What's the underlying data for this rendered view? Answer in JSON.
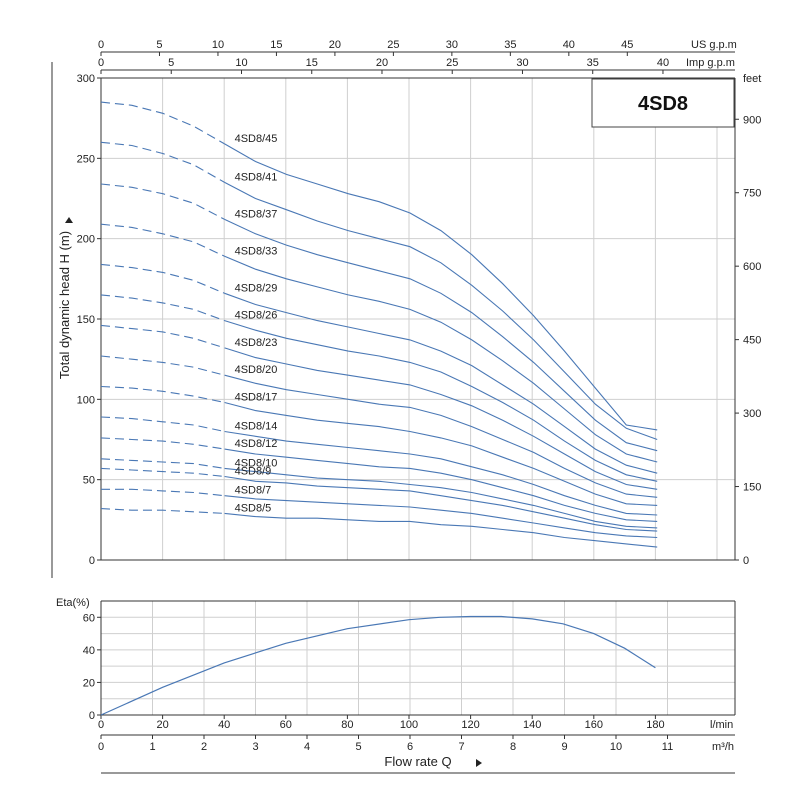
{
  "chart_data": [
    {
      "type": "line",
      "title": "4SD8",
      "ylabel": "Total dynamic head H (m)",
      "y2label": "feet",
      "ylim": [
        0,
        300
      ],
      "yticks": [
        0,
        50,
        100,
        150,
        200,
        250,
        300
      ],
      "y2ticks": [
        0,
        150,
        300,
        450,
        600,
        750,
        900
      ],
      "xlim": [
        0,
        10.8
      ],
      "top_axis_us": {
        "unit": "US g.p.m",
        "ticks": [
          0,
          5,
          10,
          15,
          20,
          25,
          30,
          35,
          40,
          45
        ]
      },
      "top_axis_imp": {
        "unit": "Imp g.p.m",
        "ticks": [
          0,
          5,
          10,
          15,
          20,
          25,
          30,
          35,
          40
        ]
      },
      "grid": true,
      "x": [
        0,
        0.6,
        1.2,
        1.8,
        2.4,
        3.0,
        3.6,
        4.2,
        4.8,
        5.4,
        6.0,
        6.6,
        7.2,
        7.8,
        8.4,
        9.0,
        9.6,
        10.2,
        10.8
      ],
      "dashed_until_x": 2.4,
      "series": [
        {
          "name": "4SD8/45",
          "values": [
            285,
            283,
            278,
            270,
            259,
            248,
            240,
            234,
            228,
            223,
            216,
            205,
            190,
            172,
            152,
            130,
            107,
            84,
            81
          ]
        },
        {
          "name": "4SD8/41",
          "values": [
            260,
            258,
            253,
            246,
            235,
            225,
            218,
            211,
            205,
            200,
            195,
            185,
            171,
            155,
            137,
            117,
            97,
            82,
            75
          ]
        },
        {
          "name": "4SD8/37",
          "values": [
            234,
            232,
            228,
            222,
            212,
            203,
            196,
            190,
            185,
            180,
            175,
            166,
            154,
            139,
            123,
            105,
            87,
            73,
            68
          ]
        },
        {
          "name": "4SD8/33",
          "values": [
            209,
            207,
            203,
            198,
            189,
            181,
            175,
            170,
            165,
            161,
            156,
            148,
            137,
            124,
            110,
            94,
            78,
            66,
            61
          ]
        },
        {
          "name": "4SD8/29",
          "values": [
            184,
            182,
            179,
            174,
            166,
            159,
            154,
            149,
            145,
            141,
            137,
            130,
            121,
            109,
            97,
            83,
            69,
            59,
            54
          ]
        },
        {
          "name": "4SD8/26",
          "values": [
            165,
            163,
            160,
            156,
            149,
            143,
            138,
            134,
            130,
            127,
            123,
            117,
            108,
            98,
            87,
            74,
            62,
            53,
            49
          ]
        },
        {
          "name": "4SD8/23",
          "values": [
            146,
            144,
            142,
            138,
            132,
            126,
            122,
            118,
            115,
            112,
            109,
            103,
            96,
            87,
            77,
            66,
            55,
            47,
            44
          ]
        },
        {
          "name": "4SD8/20",
          "values": [
            127,
            125,
            123,
            120,
            115,
            110,
            106,
            103,
            100,
            97,
            95,
            90,
            83,
            75,
            67,
            57,
            48,
            41,
            39
          ]
        },
        {
          "name": "4SD8/17",
          "values": [
            108,
            107,
            105,
            102,
            98,
            93,
            90,
            87,
            85,
            83,
            80,
            76,
            71,
            64,
            57,
            49,
            41,
            35,
            34
          ]
        },
        {
          "name": "4SD8/14",
          "values": [
            89,
            88,
            86,
            84,
            80,
            77,
            74,
            72,
            70,
            68,
            66,
            63,
            58,
            53,
            47,
            40,
            34,
            29,
            28
          ]
        },
        {
          "name": "4SD8/12",
          "values": [
            76,
            75,
            74,
            72,
            69,
            66,
            64,
            62,
            60,
            58,
            57,
            54,
            50,
            45,
            40,
            34,
            29,
            25,
            24
          ]
        },
        {
          "name": "4SD8/10",
          "values": [
            63,
            62,
            61,
            60,
            57,
            55,
            53,
            51,
            50,
            49,
            47,
            45,
            42,
            38,
            34,
            29,
            24,
            21,
            20
          ]
        },
        {
          "name": "4SD8/9",
          "values": [
            57,
            56,
            55,
            54,
            52,
            49,
            48,
            46,
            45,
            44,
            43,
            40,
            37,
            34,
            30,
            26,
            22,
            19,
            18
          ]
        },
        {
          "name": "4SD8/7",
          "values": [
            44,
            44,
            43,
            42,
            40,
            38,
            37,
            36,
            35,
            34,
            33,
            31,
            29,
            26,
            23,
            20,
            17,
            15,
            14
          ]
        },
        {
          "name": "4SD8/5",
          "values": [
            32,
            31,
            31,
            30,
            29,
            27,
            26,
            26,
            25,
            24,
            24,
            22,
            21,
            19,
            17,
            14,
            12,
            10,
            8
          ]
        }
      ]
    },
    {
      "type": "line",
      "ylabel": "Eta(%)",
      "ylim": [
        0,
        70
      ],
      "yticks": [
        0,
        20,
        40,
        60
      ],
      "xlabel": "Flow rate Q",
      "x_lmin": {
        "unit": "l/min",
        "ticks": [
          0,
          20,
          40,
          60,
          80,
          100,
          120,
          140,
          160,
          180
        ]
      },
      "x_m3h": {
        "unit": "m³/h",
        "ticks": [
          0,
          1,
          2,
          3,
          4,
          5,
          6,
          7,
          8,
          9,
          10,
          11
        ]
      },
      "grid": true,
      "x": [
        0,
        20,
        40,
        60,
        80,
        100,
        110,
        120,
        130,
        140,
        150,
        160,
        170,
        180
      ],
      "series": [
        {
          "values": [
            0,
            17,
            32,
            44,
            53,
            58.5,
            60,
            60.5,
            60.5,
            59,
            56,
            50,
            41,
            29
          ]
        }
      ]
    }
  ]
}
